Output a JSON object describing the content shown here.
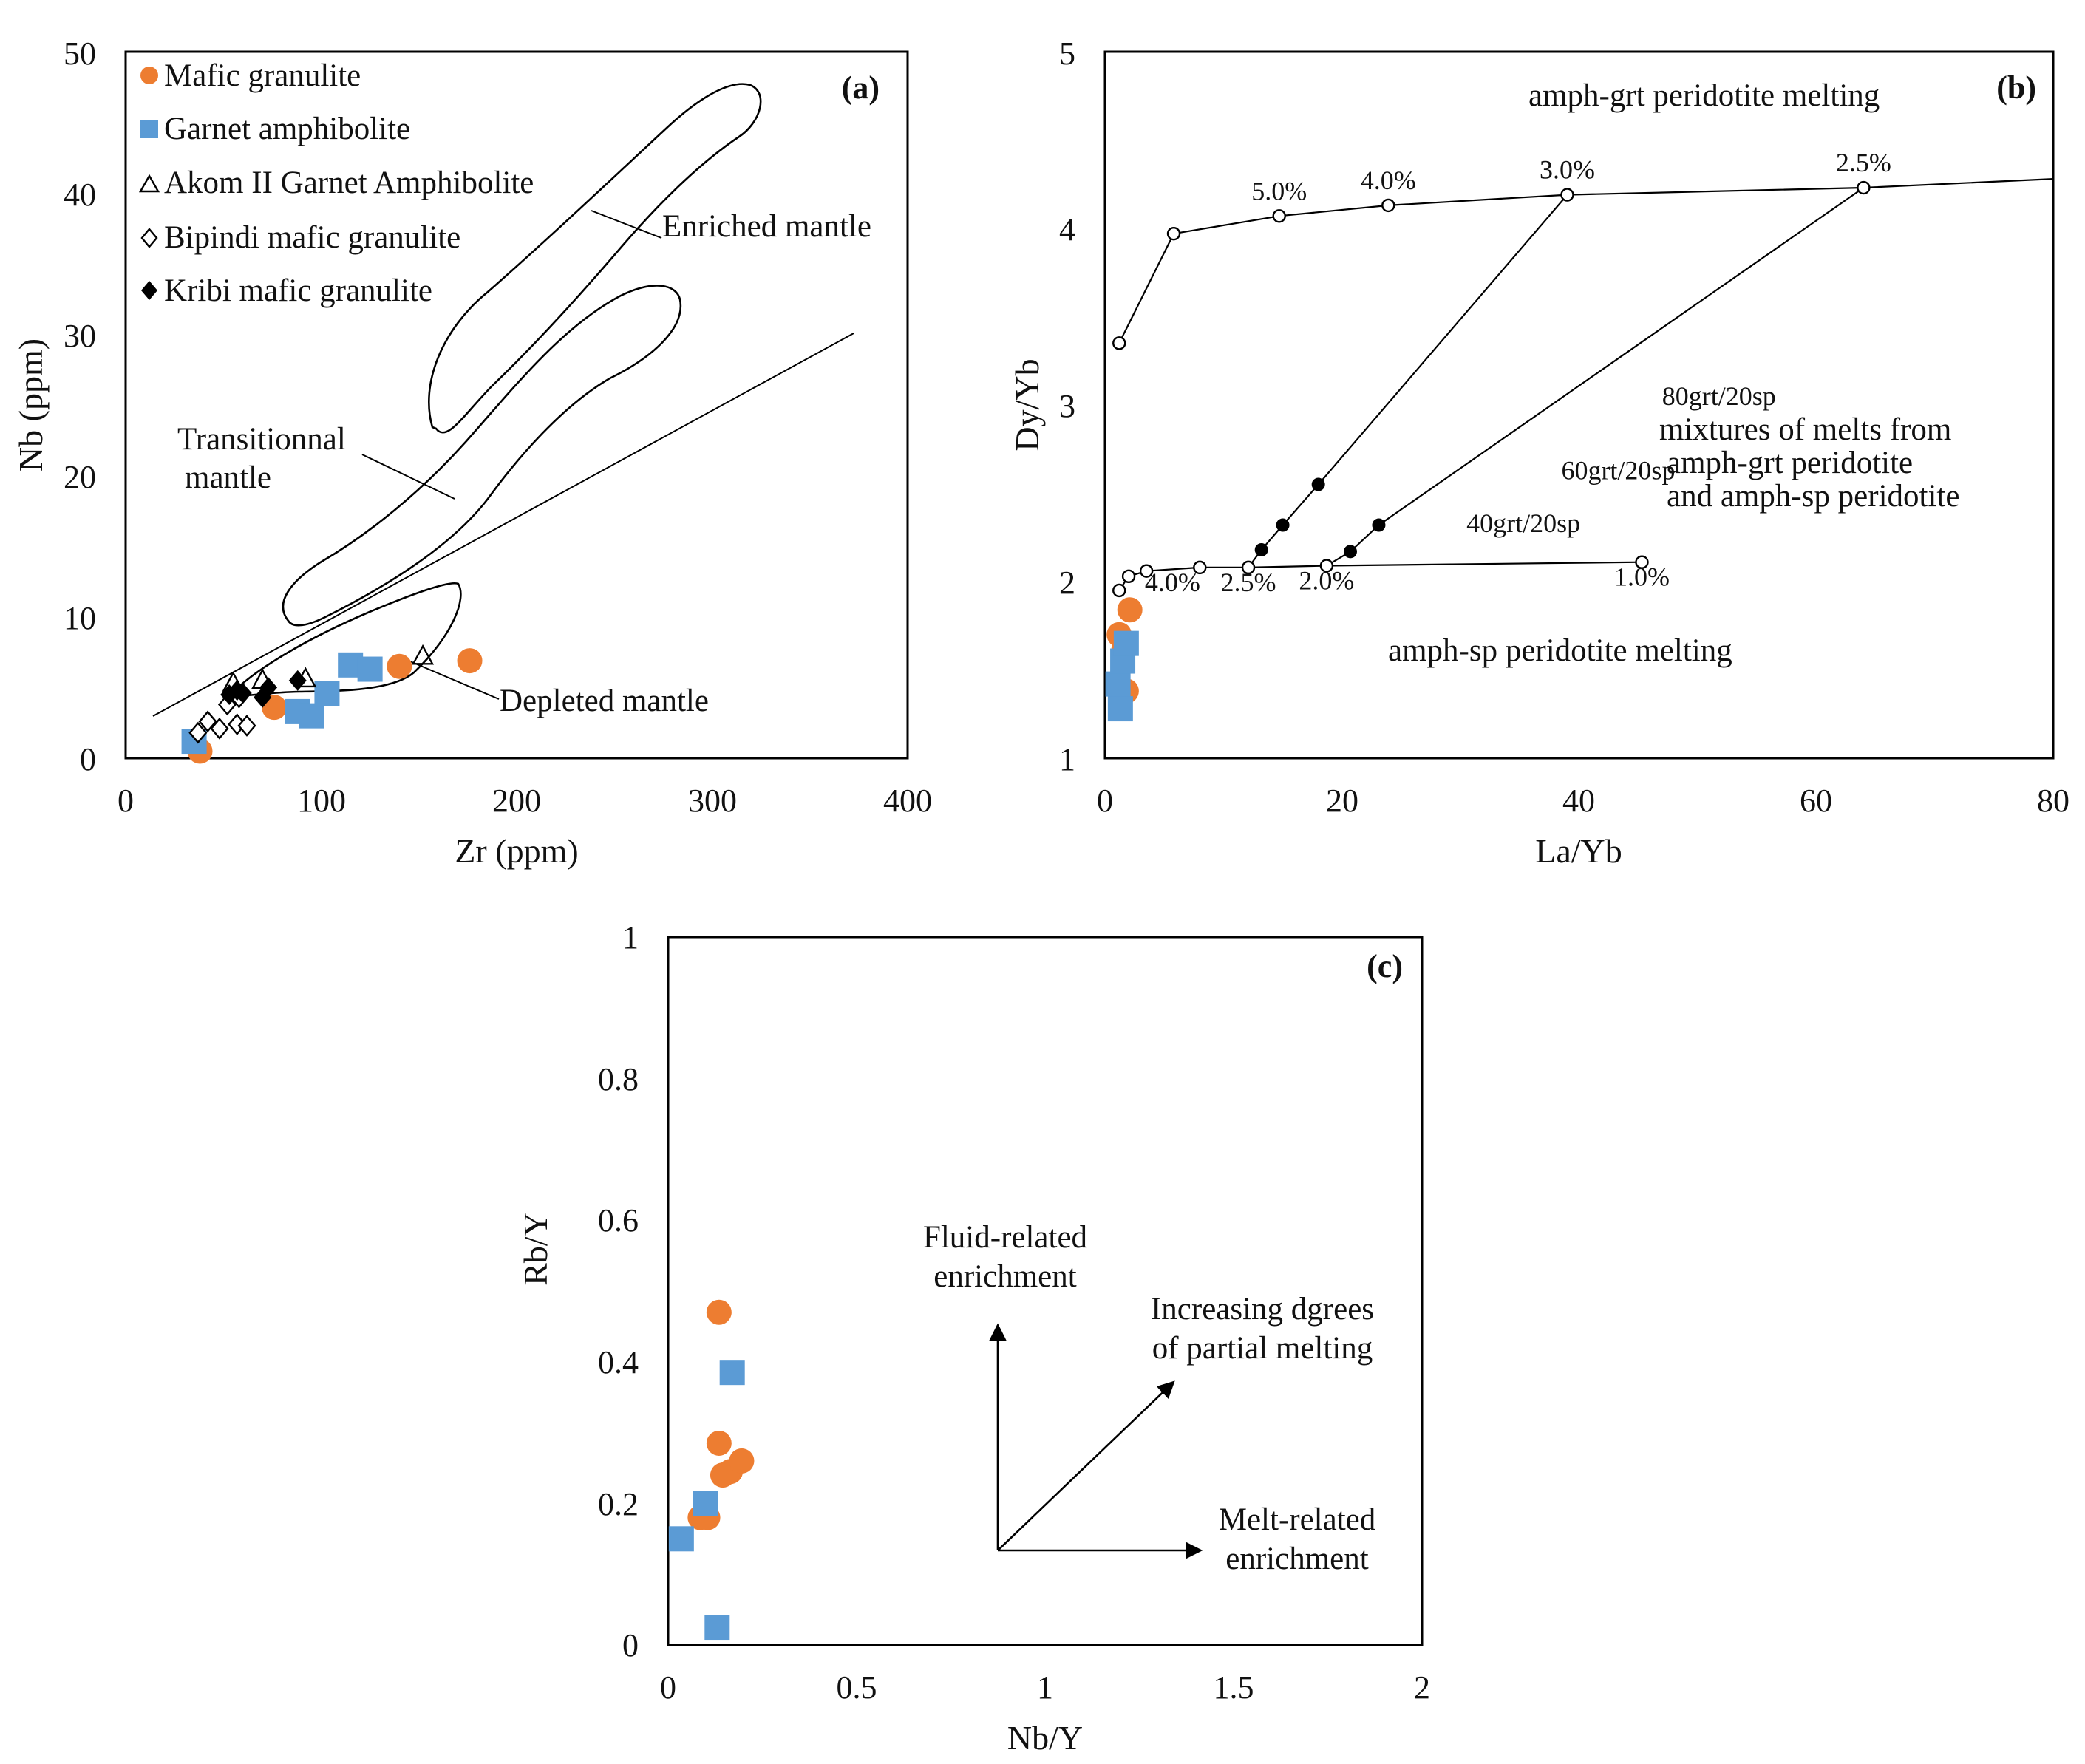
{
  "colors": {
    "mafic_granulite": "#ED7D31",
    "garnet_amphibolite": "#5B9BD5",
    "frame": "#000000"
  },
  "chart_data": [
    {
      "type": "scatter",
      "panel_label": "(a)",
      "xlabel": "Zr (ppm)",
      "ylabel": "Nb (ppm)",
      "xlim": [
        0,
        400
      ],
      "ylim": [
        0,
        50
      ],
      "xticks": [
        "0",
        "100",
        "200",
        "300",
        "400"
      ],
      "yticks": [
        "0",
        "10",
        "20",
        "30",
        "40",
        "50"
      ],
      "legend": [
        "Mafic granulite",
        "Garnet amphibolite",
        "Akom II Garnet Amphibolite",
        "Bipindi mafic granulite",
        "Kribi mafic granulite"
      ],
      "fields": [
        {
          "name": "Enriched mantle",
          "label": "Enriched mantle"
        },
        {
          "name": "Transitional mantle",
          "label": "Transitionnal\nmantle"
        },
        {
          "name": "Depleted mantle",
          "label": "Depleted mantle"
        }
      ],
      "divider_line": {
        "x": [
          14,
          372
        ],
        "y": [
          3.1,
          30.2
        ]
      },
      "series": [
        {
          "name": "Mafic granulite",
          "marker": "circle",
          "x": [
            38,
            76,
            140,
            176
          ],
          "y": [
            0.5,
            3.6,
            6.5,
            6.9
          ]
        },
        {
          "name": "Garnet amphibolite",
          "marker": "square",
          "x": [
            35,
            88,
            95,
            103,
            115,
            125
          ],
          "y": [
            1.2,
            3.3,
            3.0,
            4.6,
            6.6,
            6.3
          ]
        },
        {
          "name": "Akom II Garnet Amphibolite",
          "marker": "triangle",
          "x": [
            55,
            70,
            92,
            152
          ],
          "y": [
            5.3,
            5.5,
            5.6,
            7.2
          ]
        },
        {
          "name": "Bipindi mafic granulite",
          "marker": "diamond",
          "x": [
            37,
            42,
            48,
            52,
            57,
            58,
            62
          ],
          "y": [
            1.8,
            2.6,
            2.1,
            3.8,
            2.4,
            4.3,
            2.3
          ]
        },
        {
          "name": "Kribi mafic granulite",
          "marker": "filled-diamond",
          "x": [
            53,
            57,
            60,
            70,
            73,
            88
          ],
          "y": [
            4.5,
            4.8,
            4.6,
            4.3,
            5.0,
            5.5
          ]
        }
      ]
    },
    {
      "type": "line",
      "panel_label": "(b)",
      "xlabel": "La/Yb",
      "ylabel": "Dy/Yb",
      "xlim": [
        0,
        80
      ],
      "ylim": [
        1,
        5
      ],
      "xticks": [
        "0",
        "20",
        "40",
        "60",
        "80"
      ],
      "yticks": [
        "1",
        "2",
        "3",
        "4",
        "5"
      ],
      "annotations": [
        "amph-grt peridotite melting",
        "mixtures of melts from",
        "amph-grt peridotite",
        "and amph-sp peridotite",
        "amph-sp peridotite melting"
      ],
      "series": [
        {
          "name": "amph-grt peridotite melting curve",
          "x": [
            1.2,
            5.8,
            14.7,
            23.9,
            39,
            64,
            80
          ],
          "y": [
            3.35,
            3.97,
            4.07,
            4.13,
            4.19,
            4.23,
            4.28
          ],
          "labels": [
            {
              "text": "5.0%",
              "x": 14.7,
              "y": 4.07
            },
            {
              "text": "4.0%",
              "x": 23.9,
              "y": 4.13
            },
            {
              "text": "3.0%",
              "x": 39,
              "y": 4.19
            },
            {
              "text": "2.5%",
              "x": 64,
              "y": 4.23
            }
          ]
        },
        {
          "name": "amph-sp peridotite melting curve",
          "x": [
            1.2,
            2,
            3.5,
            8,
            12.1,
            18.7,
            45.3
          ],
          "y": [
            1.95,
            2.03,
            2.06,
            2.08,
            2.08,
            2.09,
            2.11
          ],
          "labels": [
            {
              "text": "4.0%",
              "x": 5.7,
              "y": 2.08
            },
            {
              "text": "2.5%",
              "x": 12.1,
              "y": 2.08
            },
            {
              "text": "2.0%",
              "x": 18.7,
              "y": 2.09
            },
            {
              "text": "1.0%",
              "x": 45.3,
              "y": 2.11
            }
          ]
        },
        {
          "name": "mixing line 3.0%",
          "x": [
            12.1,
            13.2,
            15,
            18,
            39
          ],
          "y": [
            2.08,
            2.18,
            2.32,
            2.55,
            4.19
          ]
        },
        {
          "name": "mixing line 2.5%",
          "x": [
            18.7,
            20.7,
            23.1,
            64
          ],
          "y": [
            2.09,
            2.17,
            2.32,
            4.23
          ],
          "labels": [
            {
              "text": "80grt/20sp",
              "x": 47,
              "y": 3.0
            },
            {
              "text": "60grt/20sp",
              "x": 38.5,
              "y": 2.58
            },
            {
              "text": "40grt/20sp",
              "x": 30.5,
              "y": 2.28
            }
          ]
        },
        {
          "name": "Mafic granulite",
          "marker": "circle",
          "x": [
            1.2,
            1.6,
            1.8,
            2.1
          ],
          "y": [
            1.7,
            1.62,
            1.38,
            1.84
          ]
        },
        {
          "name": "Garnet amphibolite",
          "marker": "square",
          "x": [
            1.1,
            1.3,
            1.5,
            1.8
          ],
          "y": [
            1.42,
            1.28,
            1.55,
            1.65
          ]
        }
      ]
    },
    {
      "type": "scatter",
      "panel_label": "(c)",
      "xlabel": "Nb/Y",
      "ylabel": "Rb/Y",
      "xlim": [
        0,
        2
      ],
      "ylim": [
        0,
        1
      ],
      "xticks": [
        "0",
        "0.5",
        "1",
        "1.5",
        "2"
      ],
      "yticks": [
        "0",
        "0.2",
        "0.4",
        "0.6",
        "0.8",
        "1"
      ],
      "annotations": [
        "Fluid-related",
        "enrichment",
        "Increasing dgrees",
        "of partial melting",
        "Melt-related",
        "enrichment"
      ],
      "series": [
        {
          "name": "Mafic granulite",
          "marker": "circle",
          "x": [
            0.135,
            0.135,
            0.145,
            0.165,
            0.195,
            0.085,
            0.105
          ],
          "y": [
            0.47,
            0.285,
            0.24,
            0.245,
            0.26,
            0.18,
            0.18
          ]
        },
        {
          "name": "Garnet amphibolite",
          "marker": "square",
          "x": [
            0.17,
            0.1,
            0.035,
            0.13
          ],
          "y": [
            0.385,
            0.2,
            0.15,
            0.025
          ]
        }
      ]
    }
  ]
}
